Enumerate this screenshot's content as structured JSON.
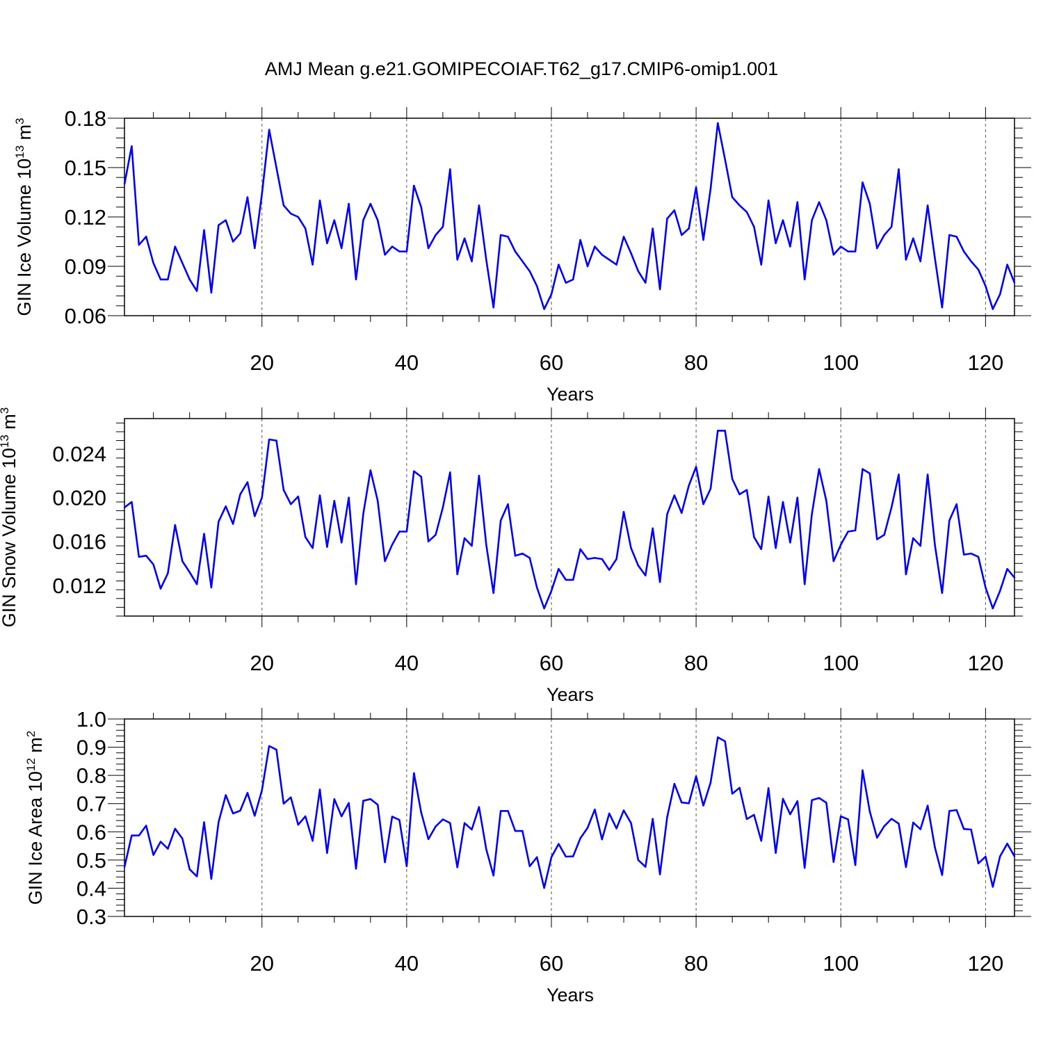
{
  "figure": {
    "title": "AMJ Mean g.e21.GOMIPECOIAF.T62_g17.CMIP6-omip1.001",
    "line_color": "#0000ff"
  },
  "chart_data": [
    {
      "type": "line",
      "title": "",
      "xlabel": "Years",
      "ylabel": {
        "base": "GIN Ice Volume 10",
        "exp": "13",
        "unit": " m",
        "unit_exp": "3"
      },
      "xlim": [
        1,
        124
      ],
      "ylim": [
        0.06,
        0.18
      ],
      "xticks": [
        20,
        40,
        60,
        80,
        100,
        120
      ],
      "xtick_labels": [
        "20",
        "40",
        "60",
        "80",
        "100",
        "120"
      ],
      "yticks": [
        0.06,
        0.09,
        0.12,
        0.15,
        0.18
      ],
      "ytick_labels": [
        "0.06",
        "0.09",
        "0.12",
        "0.15",
        "0.18"
      ],
      "grid_x": [
        20,
        40,
        60,
        80,
        100,
        120
      ],
      "series": [
        {
          "name": "GIN Ice Volume",
          "x_start": 1,
          "values": [
            0.14,
            0.163,
            0.103,
            0.108,
            0.092,
            0.082,
            0.082,
            0.102,
            0.092,
            0.082,
            0.075,
            0.112,
            0.074,
            0.115,
            0.118,
            0.105,
            0.11,
            0.132,
            0.101,
            0.134,
            0.173,
            0.15,
            0.127,
            0.122,
            0.12,
            0.113,
            0.091,
            0.13,
            0.104,
            0.118,
            0.101,
            0.128,
            0.082,
            0.118,
            0.128,
            0.118,
            0.097,
            0.102,
            0.099,
            0.099,
            0.139,
            0.126,
            0.101,
            0.109,
            0.114,
            0.149,
            0.094,
            0.107,
            0.093,
            0.127,
            0.094,
            0.065,
            0.109,
            0.108,
            0.099,
            0.093,
            0.087,
            0.078,
            0.064,
            0.073,
            0.091,
            0.08,
            0.082,
            0.106,
            0.09,
            0.102,
            0.097,
            0.094,
            0.091,
            0.108,
            0.098,
            0.087,
            0.08,
            0.113,
            0.076,
            0.119,
            0.124,
            0.109,
            0.113,
            0.138,
            0.106,
            0.137,
            0.177,
            0.155,
            0.132,
            0.127,
            0.123,
            0.114,
            0.091,
            0.13,
            0.104,
            0.118,
            0.102,
            0.129,
            0.082,
            0.118,
            0.129,
            0.118,
            0.097,
            0.102,
            0.099,
            0.099,
            0.141,
            0.128,
            0.101,
            0.109,
            0.114,
            0.149,
            0.094,
            0.107,
            0.093,
            0.127,
            0.095,
            0.065,
            0.109,
            0.108,
            0.099,
            0.093,
            0.088,
            0.078,
            0.064,
            0.073,
            0.091,
            0.08
          ]
        }
      ]
    },
    {
      "type": "line",
      "title": "",
      "xlabel": "Years",
      "ylabel": {
        "base": "GIN Snow Volume 10",
        "exp": "13",
        "unit": " m",
        "unit_exp": "3"
      },
      "xlim": [
        1,
        124
      ],
      "ylim": [
        0.0092,
        0.0272
      ],
      "xticks": [
        20,
        40,
        60,
        80,
        100,
        120
      ],
      "xtick_labels": [
        "20",
        "40",
        "60",
        "80",
        "100",
        "120"
      ],
      "yticks": [
        0.012,
        0.016,
        0.02,
        0.024
      ],
      "ytick_labels": [
        "0.012",
        "0.016",
        "0.020",
        "0.024"
      ],
      "grid_x": [
        20,
        40,
        60,
        80,
        100,
        120
      ],
      "series": [
        {
          "name": "GIN Snow Volume",
          "x_start": 1,
          "values": [
            0.0191,
            0.0196,
            0.0146,
            0.0147,
            0.0139,
            0.0117,
            0.0131,
            0.0175,
            0.0142,
            0.0132,
            0.0121,
            0.0167,
            0.0118,
            0.0178,
            0.0192,
            0.0176,
            0.0203,
            0.0214,
            0.0183,
            0.02,
            0.0253,
            0.0252,
            0.0207,
            0.0194,
            0.0201,
            0.0164,
            0.0154,
            0.0202,
            0.0155,
            0.0197,
            0.0159,
            0.02,
            0.0121,
            0.0185,
            0.0225,
            0.0197,
            0.0142,
            0.0157,
            0.0169,
            0.0169,
            0.0224,
            0.0219,
            0.016,
            0.0166,
            0.0191,
            0.0223,
            0.013,
            0.0163,
            0.0156,
            0.022,
            0.0157,
            0.0113,
            0.0179,
            0.0194,
            0.0147,
            0.0149,
            0.0145,
            0.0118,
            0.0099,
            0.0115,
            0.0135,
            0.0125,
            0.0125,
            0.0153,
            0.0144,
            0.0145,
            0.0144,
            0.0134,
            0.0144,
            0.0187,
            0.0154,
            0.0138,
            0.0129,
            0.0172,
            0.0123,
            0.0185,
            0.0202,
            0.0186,
            0.0211,
            0.0228,
            0.0194,
            0.0208,
            0.0261,
            0.0261,
            0.0217,
            0.0203,
            0.0207,
            0.0164,
            0.0153,
            0.0201,
            0.0154,
            0.0196,
            0.0159,
            0.02,
            0.0121,
            0.0185,
            0.0226,
            0.0197,
            0.0142,
            0.0157,
            0.0169,
            0.017,
            0.0226,
            0.0222,
            0.0162,
            0.0166,
            0.0191,
            0.0221,
            0.013,
            0.0163,
            0.0156,
            0.0221,
            0.0157,
            0.0113,
            0.0179,
            0.0194,
            0.0148,
            0.0149,
            0.0146,
            0.0118,
            0.0099,
            0.0115,
            0.0135,
            0.0127
          ]
        }
      ]
    },
    {
      "type": "line",
      "title": "",
      "xlabel": "Years",
      "ylabel": {
        "base": "GIN Ice Area 10",
        "exp": "12",
        "unit": " m",
        "unit_exp": "2"
      },
      "xlim": [
        1,
        124
      ],
      "ylim": [
        0.3,
        1.0
      ],
      "xticks": [
        20,
        40,
        60,
        80,
        100,
        120
      ],
      "xtick_labels": [
        "20",
        "40",
        "60",
        "80",
        "100",
        "120"
      ],
      "yticks": [
        0.3,
        0.4,
        0.5,
        0.6,
        0.7,
        0.8,
        0.9,
        1.0
      ],
      "ytick_labels": [
        "0.3",
        "0.4",
        "0.5",
        "0.6",
        "0.7",
        "0.8",
        "0.9",
        "1.0"
      ],
      "grid_x": [
        20,
        40,
        60,
        80,
        100,
        120
      ],
      "series": [
        {
          "name": "GIN Ice Area",
          "x_start": 1,
          "values": [
            0.475,
            0.587,
            0.587,
            0.622,
            0.518,
            0.565,
            0.54,
            0.611,
            0.576,
            0.467,
            0.442,
            0.634,
            0.433,
            0.634,
            0.73,
            0.665,
            0.675,
            0.738,
            0.657,
            0.747,
            0.904,
            0.891,
            0.7,
            0.722,
            0.625,
            0.655,
            0.568,
            0.75,
            0.525,
            0.716,
            0.655,
            0.702,
            0.469,
            0.71,
            0.716,
            0.696,
            0.492,
            0.654,
            0.642,
            0.478,
            0.808,
            0.669,
            0.574,
            0.619,
            0.644,
            0.631,
            0.474,
            0.631,
            0.608,
            0.688,
            0.538,
            0.445,
            0.674,
            0.674,
            0.603,
            0.603,
            0.478,
            0.51,
            0.401,
            0.51,
            0.557,
            0.512,
            0.513,
            0.577,
            0.614,
            0.679,
            0.573,
            0.665,
            0.612,
            0.676,
            0.631,
            0.5,
            0.476,
            0.646,
            0.449,
            0.652,
            0.77,
            0.704,
            0.701,
            0.797,
            0.693,
            0.774,
            0.935,
            0.921,
            0.735,
            0.756,
            0.645,
            0.66,
            0.568,
            0.755,
            0.525,
            0.717,
            0.662,
            0.709,
            0.472,
            0.712,
            0.72,
            0.703,
            0.493,
            0.655,
            0.644,
            0.482,
            0.818,
            0.672,
            0.579,
            0.62,
            0.646,
            0.629,
            0.475,
            0.633,
            0.609,
            0.693,
            0.545,
            0.447,
            0.674,
            0.677,
            0.61,
            0.608,
            0.488,
            0.512,
            0.405,
            0.513,
            0.558,
            0.513
          ]
        }
      ]
    }
  ]
}
